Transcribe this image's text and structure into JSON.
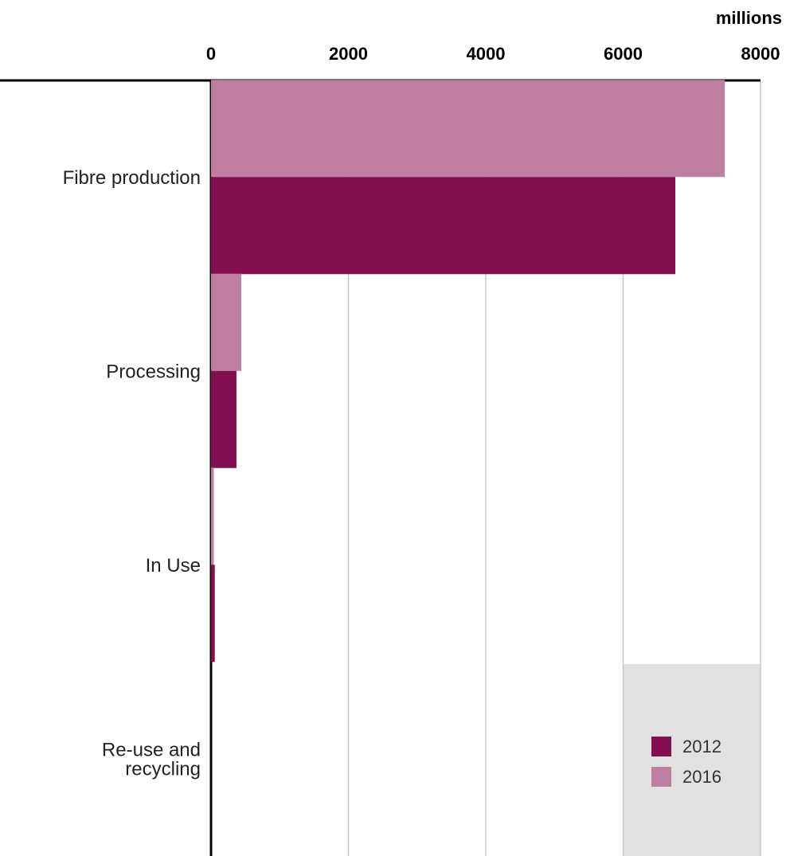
{
  "chart_data": {
    "type": "bar",
    "orientation": "horizontal",
    "unit_label": "millions",
    "categories": [
      [
        "Fibre production"
      ],
      [
        "Processing"
      ],
      [
        "In Use"
      ],
      [
        "Re-use and",
        "recycling"
      ]
    ],
    "series": [
      {
        "name": "2016",
        "color": "#bd7ea1",
        "values": [
          7480,
          440,
          40,
          0
        ]
      },
      {
        "name": "2012",
        "color": "#830f50",
        "values": [
          6760,
          370,
          55,
          0
        ]
      }
    ],
    "legend_order": [
      "2012",
      "2016"
    ],
    "xlim": [
      0,
      8000
    ],
    "xticks": [
      "0",
      "2000",
      "4000",
      "6000",
      "8000"
    ],
    "legend_position": "bottom-right",
    "legend_background": "#e0e1e0",
    "grid": true
  }
}
